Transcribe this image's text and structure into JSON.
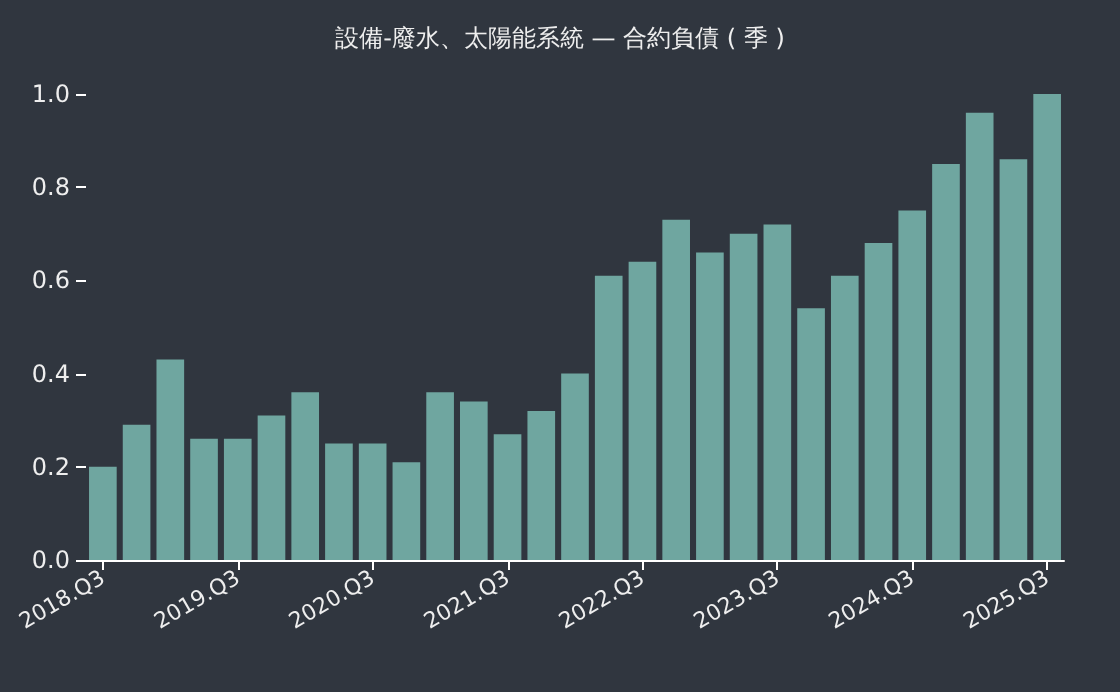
{
  "chart_data": {
    "type": "bar",
    "title": "設備-廢水、太陽能系統 — 合約負債 ( 季 )",
    "categories": [
      "2018.Q3",
      null,
      null,
      null,
      "2019.Q3",
      null,
      null,
      null,
      "2020.Q3",
      null,
      null,
      null,
      "2021.Q3",
      null,
      null,
      null,
      "2022.Q3",
      null,
      null,
      null,
      "2023.Q3",
      null,
      null,
      null,
      "2024.Q3",
      null,
      null,
      null,
      "2025.Q3"
    ],
    "values": [
      0.2,
      0.29,
      0.43,
      0.26,
      0.26,
      0.31,
      0.36,
      0.25,
      0.25,
      0.21,
      0.36,
      0.34,
      0.27,
      0.32,
      0.4,
      0.61,
      0.64,
      0.73,
      0.66,
      0.7,
      0.72,
      0.54,
      0.61,
      0.68,
      0.75,
      0.85,
      0.96,
      0.86,
      1.0
    ],
    "color": "#6fa6a0",
    "ylim": [
      0,
      1.0
    ],
    "yticks": [
      {
        "value": 0,
        "label": "0.0"
      },
      0.2,
      0.4,
      0.6,
      0.8,
      {
        "value": 1,
        "label": "1.0"
      }
    ],
    "grid": false
  }
}
